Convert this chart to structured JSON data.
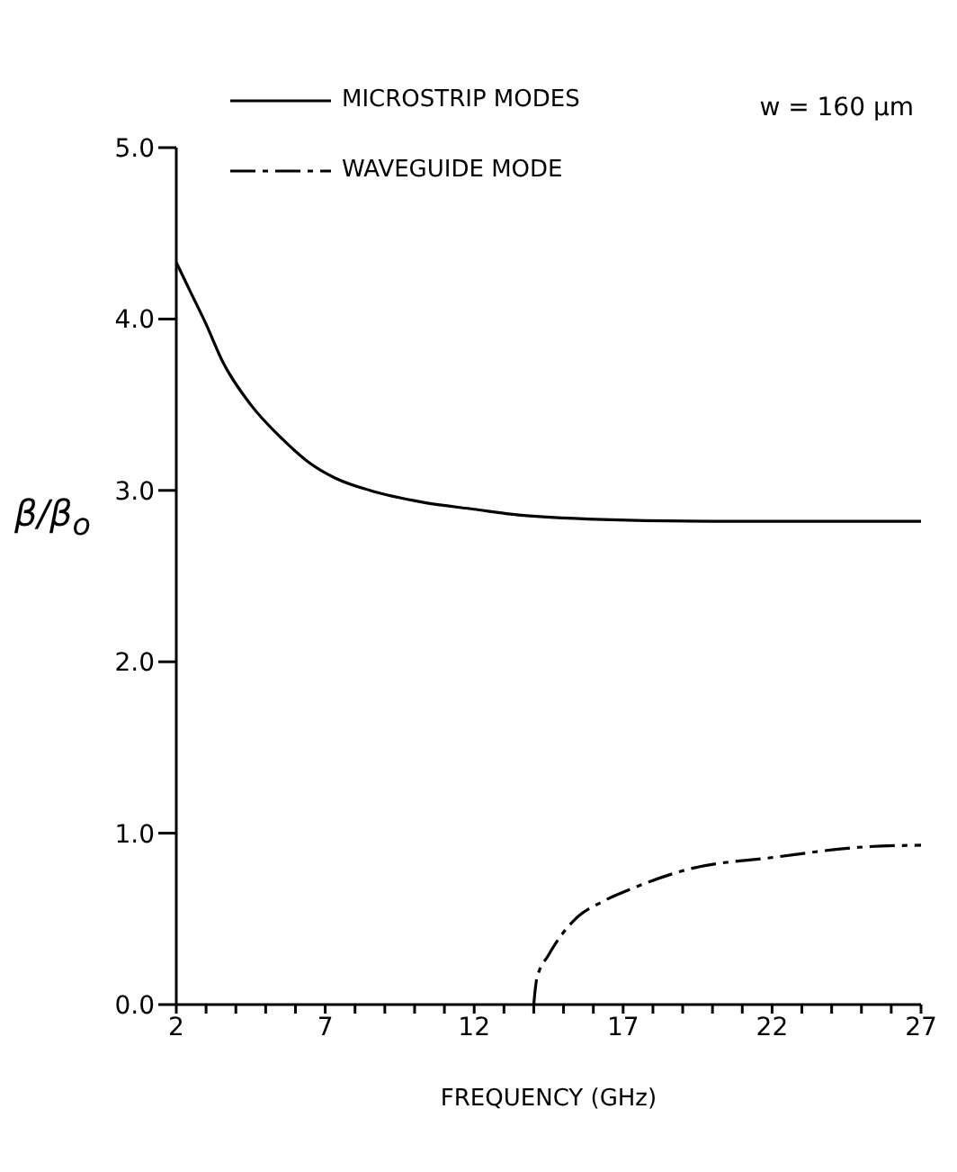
{
  "chart_data": {
    "type": "line",
    "xlabel": "FREQUENCY   (GHz)",
    "ylabel": "β/β$_{o}$",
    "annotations": [
      "w = 160 μm"
    ],
    "series": [
      {
        "name": "MICROSTRIP MODES",
        "color": "#000000",
        "line_style": "solid",
        "x": [
          2,
          2.5,
          3,
          3.56,
          4.5,
          5.56,
          6.4,
          7.36,
          8.5,
          10.3,
          12,
          13.3,
          16.3,
          20,
          24,
          27
        ],
        "values": [
          4.33,
          4.15,
          3.97,
          3.75,
          3.5,
          3.3,
          3.17,
          3.07,
          3.0,
          2.93,
          2.89,
          2.86,
          2.83,
          2.82,
          2.82,
          2.82
        ]
      },
      {
        "name": "WAVEGUIDE MODE",
        "color": "#000000",
        "line_style": "dashed",
        "x": [
          14,
          14.1,
          14.5,
          15.4,
          16.3,
          17.2,
          19.2,
          22.1,
          25.1,
          27
        ],
        "values": [
          0,
          0.15,
          0.29,
          0.5,
          0.6,
          0.67,
          0.79,
          0.86,
          0.92,
          0.93
        ]
      }
    ],
    "xlim": [
      2,
      27
    ],
    "xticks": [
      2,
      {
        "value": 3,
        "label": null
      },
      {
        "value": 4,
        "label": null
      },
      {
        "value": 5,
        "label": null
      },
      {
        "value": 6,
        "label": null
      },
      7,
      {
        "value": 8,
        "label": null
      },
      {
        "value": 9,
        "label": null
      },
      {
        "value": 10,
        "label": null
      },
      {
        "value": 11,
        "label": null
      },
      12,
      {
        "value": 13,
        "label": null
      },
      {
        "value": 14,
        "label": null
      },
      {
        "value": 15,
        "label": null
      },
      {
        "value": 16,
        "label": null
      },
      17,
      {
        "value": 18,
        "label": null
      },
      {
        "value": 19,
        "label": null
      },
      {
        "value": 20,
        "label": null
      },
      {
        "value": 21,
        "label": null
      },
      22,
      {
        "value": 23,
        "label": null
      },
      {
        "value": 24,
        "label": null
      },
      {
        "value": 25,
        "label": null
      },
      {
        "value": 26,
        "label": null
      },
      27
    ],
    "ylim": [
      0,
      5
    ],
    "yticks": [
      {
        "value": 0,
        "label": "0.0"
      },
      {
        "value": 1,
        "label": "1.0"
      },
      {
        "value": 2,
        "label": "2.0"
      },
      {
        "value": 3,
        "label": "3.0"
      },
      {
        "value": 4,
        "label": "4.0"
      },
      {
        "value": 5,
        "label": "5.0"
      }
    ],
    "grid": false,
    "legend": "top left",
    "marker": "none"
  }
}
